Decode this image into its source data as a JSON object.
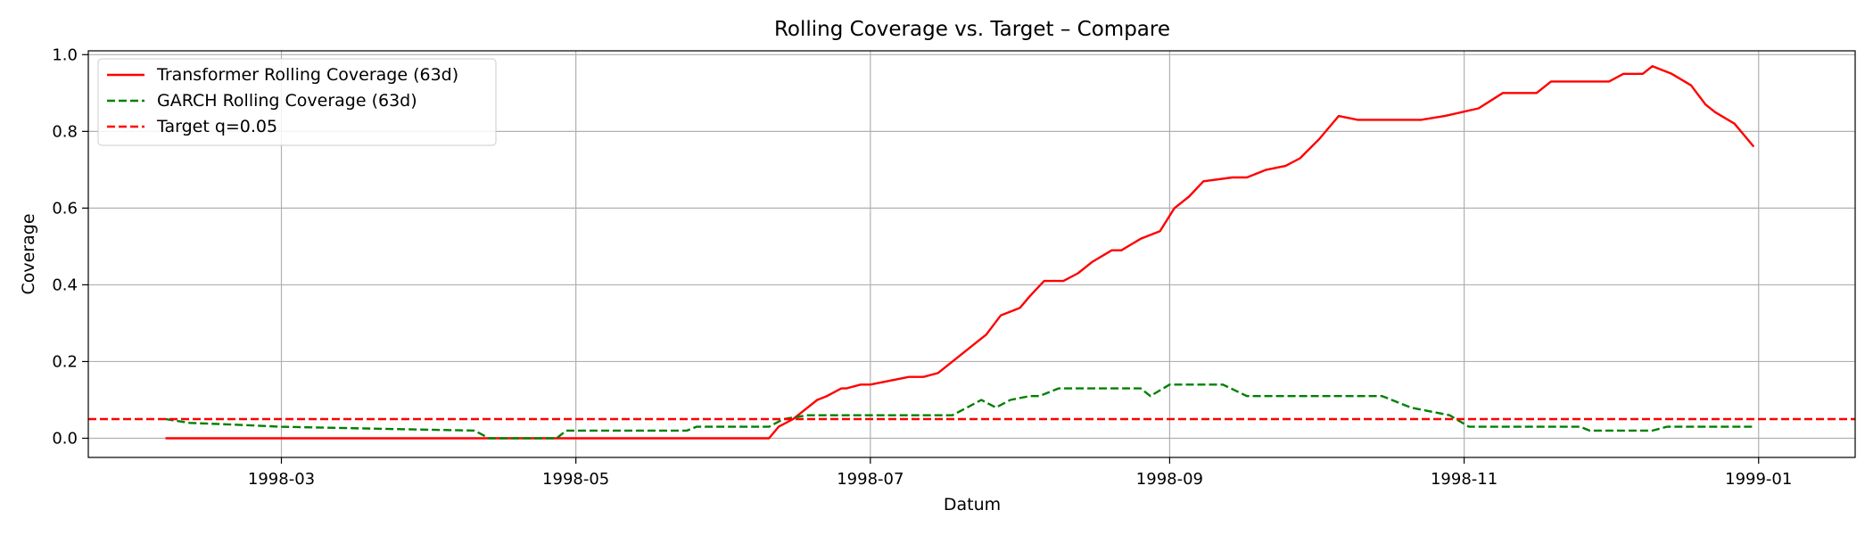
{
  "chart_data": {
    "type": "line",
    "title": "Rolling Coverage vs. Target – Compare",
    "xlabel": "Datum",
    "ylabel": "Coverage",
    "xlim": [
      "1998-01-20",
      "1999-01-21"
    ],
    "ylim": [
      -0.05,
      1.01
    ],
    "grid": true,
    "legend_position": "top-left",
    "x_ticks": [
      "1998-03-01",
      "1998-05-01",
      "1998-07-01",
      "1998-09-01",
      "1998-11-01",
      "1999-01-01"
    ],
    "x_tick_labels": [
      "1998-03",
      "1998-05",
      "1998-07",
      "1998-09",
      "1998-11",
      "1999-01"
    ],
    "y_ticks": [
      0.0,
      0.2,
      0.4,
      0.6,
      0.8,
      1.0
    ],
    "y_tick_labels": [
      "0.0",
      "0.2",
      "0.4",
      "0.6",
      "0.8",
      "1.0"
    ],
    "series": [
      {
        "name": "Transformer Rolling Coverage (63d)",
        "color": "#ff0000",
        "style": "solid",
        "x": [
          "1998-02-05",
          "1998-06-10",
          "1998-06-12",
          "1998-06-15",
          "1998-06-18",
          "1998-06-20",
          "1998-06-22",
          "1998-06-25",
          "1998-06-26",
          "1998-06-29",
          "1998-07-01",
          "1998-07-09",
          "1998-07-12",
          "1998-07-15",
          "1998-07-17",
          "1998-07-22",
          "1998-07-25",
          "1998-07-28",
          "1998-08-01",
          "1998-08-03",
          "1998-08-06",
          "1998-08-10",
          "1998-08-13",
          "1998-08-16",
          "1998-08-20",
          "1998-08-22",
          "1998-08-26",
          "1998-08-30",
          "1998-09-02",
          "1998-09-05",
          "1998-09-08",
          "1998-09-14",
          "1998-09-17",
          "1998-09-21",
          "1998-09-25",
          "1998-09-28",
          "1998-10-02",
          "1998-10-06",
          "1998-10-10",
          "1998-10-14",
          "1998-10-19",
          "1998-10-23",
          "1998-10-28",
          "1998-11-04",
          "1998-11-09",
          "1998-11-16",
          "1998-11-19",
          "1998-11-28",
          "1998-12-01",
          "1998-12-04",
          "1998-12-08",
          "1998-12-10",
          "1998-12-14",
          "1998-12-18",
          "1998-12-21",
          "1998-12-23",
          "1998-12-27",
          "1998-12-31"
        ],
        "y": [
          0.0,
          0.0,
          0.03,
          0.05,
          0.08,
          0.1,
          0.11,
          0.13,
          0.13,
          0.14,
          0.14,
          0.16,
          0.16,
          0.17,
          0.19,
          0.24,
          0.27,
          0.32,
          0.34,
          0.37,
          0.41,
          0.41,
          0.43,
          0.46,
          0.49,
          0.49,
          0.52,
          0.54,
          0.6,
          0.63,
          0.67,
          0.68,
          0.68,
          0.7,
          0.71,
          0.73,
          0.78,
          0.84,
          0.83,
          0.83,
          0.83,
          0.83,
          0.84,
          0.86,
          0.9,
          0.9,
          0.93,
          0.93,
          0.93,
          0.95,
          0.95,
          0.97,
          0.95,
          0.92,
          0.87,
          0.85,
          0.82,
          0.76
        ]
      },
      {
        "name": "GARCH Rolling Coverage (63d)",
        "color": "#008000",
        "style": "dashed",
        "x": [
          "1998-02-05",
          "1998-02-10",
          "1998-02-20",
          "1998-03-01",
          "1998-03-20",
          "1998-04-10",
          "1998-04-13",
          "1998-04-27",
          "1998-04-29",
          "1998-05-24",
          "1998-05-26",
          "1998-06-10",
          "1998-06-13",
          "1998-06-18",
          "1998-07-18",
          "1998-07-21",
          "1998-07-24",
          "1998-07-27",
          "1998-07-30",
          "1998-08-03",
          "1998-08-05",
          "1998-08-09",
          "1998-08-15",
          "1998-08-26",
          "1998-08-28",
          "1998-09-01",
          "1998-09-12",
          "1998-09-17",
          "1998-10-15",
          "1998-10-21",
          "1998-10-29",
          "1998-11-02",
          "1998-11-25",
          "1998-11-27",
          "1998-12-10",
          "1998-12-13",
          "1998-12-31"
        ],
        "y": [
          0.05,
          0.04,
          0.035,
          0.03,
          0.025,
          0.02,
          0.0,
          0.0,
          0.02,
          0.02,
          0.03,
          0.03,
          0.05,
          0.06,
          0.06,
          0.08,
          0.1,
          0.08,
          0.1,
          0.11,
          0.11,
          0.13,
          0.13,
          0.13,
          0.11,
          0.14,
          0.14,
          0.11,
          0.11,
          0.08,
          0.06,
          0.03,
          0.03,
          0.02,
          0.02,
          0.03,
          0.03
        ]
      },
      {
        "name": "Target q=0.05",
        "color": "#ff0000",
        "style": "dashed",
        "x": [
          "1998-01-20",
          "1999-01-21"
        ],
        "y": [
          0.05,
          0.05
        ]
      }
    ]
  }
}
